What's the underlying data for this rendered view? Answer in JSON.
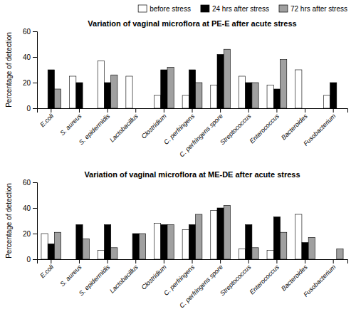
{
  "chart_data": [
    {
      "type": "bar",
      "title": "Variation of vaginal microflora at PE-E after acute stress",
      "categories": [
        "E.coli",
        "S. aureus",
        "S. epidermidis",
        "Lactobacillus",
        "Clostridium",
        "C. perfringens",
        "C. perfringens spore",
        "Streptococcus",
        "Enterococcus",
        "Bacteroides",
        "Fusobacterium"
      ],
      "series": [
        {
          "name": "before stress",
          "color": "white",
          "values": [
            0,
            25,
            37,
            25,
            10,
            10,
            18,
            25,
            18,
            30,
            10
          ]
        },
        {
          "name": "24 hrs after stress",
          "color": "black",
          "values": [
            30,
            20,
            20,
            0,
            30,
            30,
            42,
            20,
            15,
            0,
            20
          ]
        },
        {
          "name": "72 hrs after stress",
          "color": "#a0a0a0",
          "values": [
            15,
            0,
            26,
            0,
            32,
            20,
            46,
            20,
            38,
            0,
            0
          ]
        }
      ],
      "ylabel": "Percentage of detection",
      "ylim": [
        0,
        60
      ],
      "yticks": [
        0,
        20,
        40,
        60
      ],
      "legend": "upper right"
    },
    {
      "type": "bar",
      "title": "Variation of vaginal microflora at ME-DE after acute stress",
      "categories": [
        "E.coli",
        "S. aureus",
        "S. epidermidis",
        "Lactobacillus",
        "Clostridium",
        "C. perfringens",
        "C. perfringens spore",
        "Streptococcus",
        "Enterococcus",
        "Bacteroides",
        "Fusobacterium"
      ],
      "series": [
        {
          "name": "before stress",
          "color": "white",
          "values": [
            20,
            0,
            7,
            0,
            28,
            23,
            38,
            8,
            7,
            35,
            0
          ]
        },
        {
          "name": "24 hrs after stress",
          "color": "black",
          "values": [
            12,
            27,
            27,
            20,
            27,
            27,
            40,
            27,
            33,
            13,
            0
          ]
        },
        {
          "name": "72 hrs after stress",
          "color": "#a0a0a0",
          "values": [
            21,
            16,
            9,
            20,
            27,
            35,
            42,
            9,
            21,
            17,
            8
          ]
        }
      ],
      "ylabel": "Percentage of detection",
      "ylim": [
        0,
        60
      ],
      "yticks": [
        0,
        20,
        40,
        60
      ]
    }
  ]
}
